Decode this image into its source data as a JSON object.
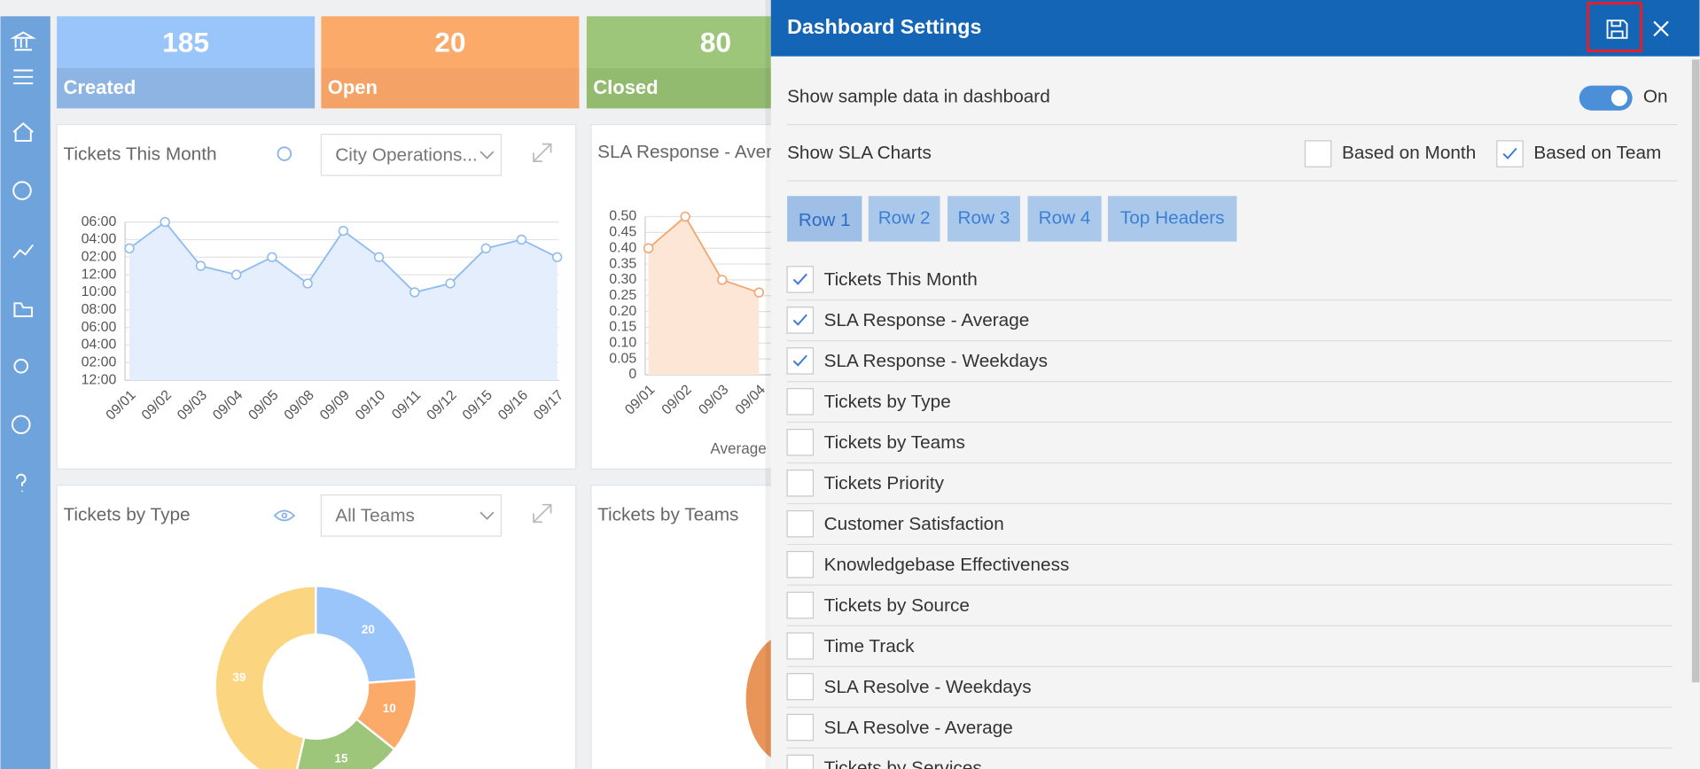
{
  "stats": [
    {
      "value": 185,
      "label": "Created",
      "color": "#9ac5fa",
      "band": "#8db4e3"
    },
    {
      "value": 20,
      "label": "Open",
      "color": "#fcaa6a",
      "band": "#f5a266"
    },
    {
      "value": 80,
      "label": "Closed",
      "color": "#9dc67a",
      "band": "#93bb70"
    }
  ],
  "widgets": [
    {
      "title": "Tickets This Month",
      "filter": "City Operations...",
      "chart": {
        "type": "line",
        "color": "#8fbcf0",
        "fill": "#e5eefc",
        "categories": [
          "09/01",
          "09/02",
          "09/03",
          "09/04",
          "09/05",
          "09/08",
          "09/09",
          "09/10",
          "09/11",
          "09/12",
          "09/15",
          "09/16",
          "09/17"
        ],
        "values": [
          15,
          18,
          13,
          12,
          14,
          11,
          17,
          14,
          10,
          11,
          15,
          16,
          14
        ],
        "ylim": [
          0,
          18
        ],
        "yticks": [
          {
            "value": 0,
            "label": "12:00"
          },
          {
            "value": 2,
            "label": "02:00"
          },
          {
            "value": 4,
            "label": "04:00"
          },
          {
            "value": 6,
            "label": "06:00"
          },
          {
            "value": 8,
            "label": "08:00"
          },
          {
            "value": 10,
            "label": "10:00"
          },
          {
            "value": 12,
            "label": "12:00"
          },
          {
            "value": 14,
            "label": "02:00"
          },
          {
            "value": 16,
            "label": "04:00"
          },
          {
            "value": 18,
            "label": "06:00"
          }
        ],
        "grid": true
      }
    },
    {
      "title": "SLA Response - Aver",
      "chart": {
        "type": "line",
        "color": "#f2a571",
        "fill": "#fde6d6",
        "categories": [
          "09/01",
          "09/02",
          "09/03",
          "09/04"
        ],
        "values": [
          0.4,
          0.5,
          0.3,
          0.26
        ],
        "ylim": [
          0,
          0.5
        ],
        "yticks": [
          0,
          {
            "value": 0.05,
            "label": "0.05"
          },
          {
            "value": 0.1,
            "label": "0.10"
          },
          0.15,
          {
            "value": 0.2,
            "label": "0.20"
          },
          0.25,
          {
            "value": 0.3,
            "label": "0.30"
          },
          0.35,
          {
            "value": 0.4,
            "label": "0.40"
          },
          0.45,
          {
            "value": 0.5,
            "label": "0.50"
          }
        ],
        "x_label": "Average R",
        "grid": true
      }
    },
    {
      "title": "Tickets by Type",
      "filter": "All Teams",
      "chart": {
        "type": "pie",
        "values": [
          20,
          10,
          15,
          39
        ],
        "colors": [
          "#9ac5fa",
          "#fcaa6a",
          "#9dc67a",
          "#fcd580"
        ]
      }
    },
    {
      "title": "Tickets by Teams"
    }
  ],
  "settings": {
    "title": "Dashboard Settings",
    "sample_data": {
      "label": "Show sample data in dashboard",
      "state": "On"
    },
    "sla": {
      "label": "Show SLA Charts",
      "options": [
        {
          "label": "Based on Month",
          "checked": false
        },
        {
          "label": "Based on Team",
          "checked": true
        }
      ]
    },
    "tabs": [
      "Row 1",
      "Row 2",
      "Row 3",
      "Row 4",
      "Top Headers"
    ],
    "active_tab": 0,
    "items": [
      {
        "label": "Tickets This Month",
        "checked": true
      },
      {
        "label": "SLA Response - Average",
        "checked": true
      },
      {
        "label": "SLA Response - Weekdays",
        "checked": true
      },
      {
        "label": "Tickets by Type",
        "checked": false
      },
      {
        "label": "Tickets by Teams",
        "checked": false
      },
      {
        "label": "Tickets Priority",
        "checked": false
      },
      {
        "label": "Customer Satisfaction",
        "checked": false
      },
      {
        "label": "Knowledgebase Effectiveness",
        "checked": false
      },
      {
        "label": "Tickets by Source",
        "checked": false
      },
      {
        "label": "Time Track",
        "checked": false
      },
      {
        "label": "SLA Resolve - Weekdays",
        "checked": false
      },
      {
        "label": "SLA Resolve - Average",
        "checked": false
      },
      {
        "label": "Tickets by Services",
        "checked": false
      }
    ]
  }
}
